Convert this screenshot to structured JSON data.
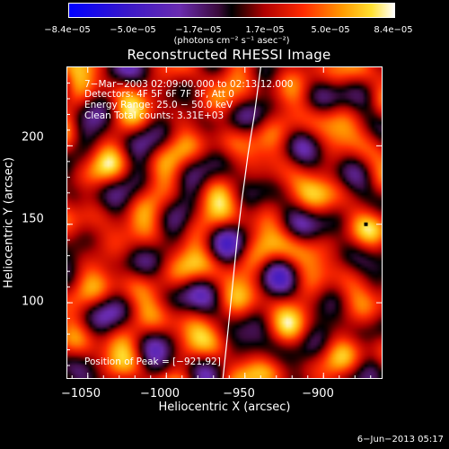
{
  "colorbar": {
    "tick_labels": [
      "−8.4e−05",
      "−5.0e−05",
      "−1.7e−05",
      "1.7e−05",
      "5.0e−05",
      "8.4e−05"
    ],
    "unit_label": "(photons cm⁻² s⁻¹ asec⁻²)",
    "min": -8.4e-05,
    "max": 8.4e-05
  },
  "chart_data": {
    "type": "heatmap",
    "title": "Reconstructed RHESSI Image",
    "xlabel": "Heliocentric X (arcsec)",
    "ylabel": "Heliocentric Y (arcsec)",
    "xlim": [
      -1063,
      -863
    ],
    "ylim": [
      52,
      250
    ],
    "xticks": [
      -1050,
      -1000,
      -950,
      -900
    ],
    "yticks": [
      100,
      150,
      200
    ],
    "x_tick_labels": [
      "−1050",
      "−1000",
      "−950",
      "−900"
    ],
    "y_tick_labels": [
      "100",
      "150",
      "200"
    ],
    "colormap": "blue-purple-red-yellow-white",
    "value_range": [
      -8.4e-05,
      8.4e-05
    ],
    "limb_curve": {
      "x": [
        -940,
        -944,
        -948,
        -952,
        -955,
        -958,
        -961,
        -964
      ],
      "y": [
        250,
        220,
        195,
        165,
        140,
        110,
        80,
        52
      ]
    },
    "peak": [
      -921,
      92
    ],
    "grid": false
  },
  "info": {
    "time_range": "7−Mar−2003 02:09:00.000 to 02:13:12.000",
    "detectors": "Detectors: 4F 5F 6F 7F 8F, Att 0",
    "energy": "Energy Range: 25.0 − 50.0 keV",
    "clean": "Clean     Total counts: 3.31E+03",
    "peak_text": "Position of Peak = [−921,92]"
  },
  "date_stamp": "6−Jun−2013 05:17"
}
